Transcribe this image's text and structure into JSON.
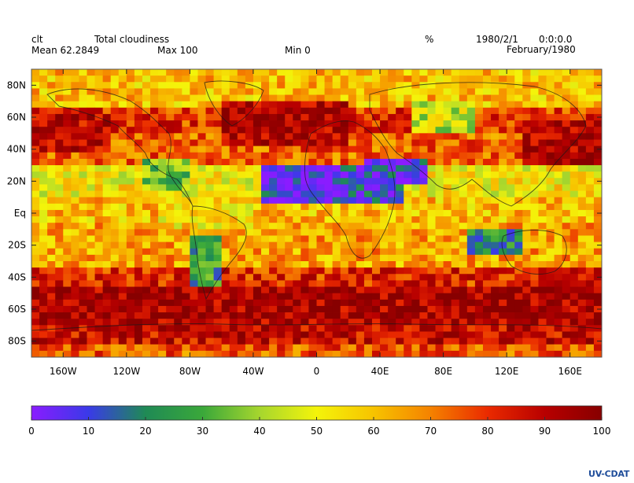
{
  "header": {
    "var_name": "clt",
    "long_name": "Total cloudiness",
    "units": "%",
    "date": "1980/2/1",
    "time": "0:0:0.0",
    "mean_label": "Mean 62.2849",
    "max_label": "Max 100",
    "min_label": "Min 0",
    "period": "February/1980"
  },
  "logo_text": "UV-CDAT",
  "chart_data": {
    "type": "heatmap",
    "title": "Total cloudiness",
    "variable": "clt",
    "units": "%",
    "grid": false,
    "xlim": [
      -180,
      180
    ],
    "ylim": [
      -90,
      90
    ],
    "x_ticks": [
      -160,
      -120,
      -80,
      -40,
      0,
      40,
      80,
      120,
      160
    ],
    "x_tick_labels": [
      "160W",
      "120W",
      "80W",
      "40W",
      "0",
      "40E",
      "80E",
      "120E",
      "160E"
    ],
    "y_ticks": [
      80,
      60,
      40,
      20,
      0,
      -20,
      -40,
      -60,
      -80
    ],
    "y_tick_labels": [
      "80N",
      "60N",
      "40N",
      "20N",
      "Eq",
      "20S",
      "40S",
      "60S",
      "80S"
    ],
    "color_scale": {
      "min": 0,
      "max": 100,
      "ticks": [
        0,
        10,
        20,
        30,
        40,
        50,
        60,
        70,
        80,
        90,
        100
      ],
      "tick_labels": [
        "0",
        "10",
        "20",
        "30",
        "40",
        "50",
        "60",
        "70",
        "80",
        "90",
        "100"
      ],
      "colors": [
        "#8a1cff",
        "#3a3ae8",
        "#1f8a55",
        "#3aa83a",
        "#a6d62e",
        "#f4f40a",
        "#f7c300",
        "#f58200",
        "#ea2a00",
        "#b80000",
        "#870000"
      ]
    },
    "stats": {
      "mean": 62.2849,
      "max": 100,
      "min": 0
    },
    "regions": [
      {
        "lon": [
          -180,
          180
        ],
        "lat": [
          -90,
          -82
        ],
        "value": 75
      },
      {
        "lon": [
          -180,
          180
        ],
        "lat": [
          -82,
          -70
        ],
        "value": 88
      },
      {
        "lon": [
          -180,
          180
        ],
        "lat": [
          -70,
          -45
        ],
        "value": 93
      },
      {
        "lon": [
          -180,
          180
        ],
        "lat": [
          -45,
          -35
        ],
        "value": 82
      },
      {
        "lon": [
          -180,
          180
        ],
        "lat": [
          -35,
          -5
        ],
        "value": 64
      },
      {
        "lon": [
          -180,
          180
        ],
        "lat": [
          -5,
          12
        ],
        "value": 60
      },
      {
        "lon": [
          -180,
          180
        ],
        "lat": [
          12,
          30
        ],
        "value": 52
      },
      {
        "lon": [
          -180,
          180
        ],
        "lat": [
          30,
          50
        ],
        "value": 74
      },
      {
        "lon": [
          -180,
          180
        ],
        "lat": [
          50,
          68
        ],
        "value": 80
      },
      {
        "lon": [
          -180,
          180
        ],
        "lat": [
          68,
          90
        ],
        "value": 60
      },
      {
        "lon": [
          -35,
          55
        ],
        "lat": [
          8,
          32
        ],
        "value": 10
      },
      {
        "lon": [
          -25,
          15
        ],
        "lat": [
          10,
          30
        ],
        "value": 5
      },
      {
        "lon": [
          30,
          70
        ],
        "lat": [
          20,
          35
        ],
        "value": 8
      },
      {
        "lon": [
          95,
          130
        ],
        "lat": [
          -25,
          -8
        ],
        "value": 22
      },
      {
        "lon": [
          -78,
          -60
        ],
        "lat": [
          -45,
          -12
        ],
        "value": 25
      },
      {
        "lon": [
          -180,
          -130
        ],
        "lat": [
          38,
          62
        ],
        "value": 90
      },
      {
        "lon": [
          -60,
          20
        ],
        "lat": [
          42,
          70
        ],
        "value": 92
      },
      {
        "lon": [
          130,
          180
        ],
        "lat": [
          30,
          60
        ],
        "value": 93
      },
      {
        "lon": [
          -110,
          -80
        ],
        "lat": [
          15,
          35
        ],
        "value": 35
      },
      {
        "lon": [
          -100,
          -40
        ],
        "lat": [
          -10,
          10
        ],
        "value": 55
      },
      {
        "lon": [
          60,
          100
        ],
        "lat": [
          50,
          70
        ],
        "value": 45
      }
    ]
  }
}
